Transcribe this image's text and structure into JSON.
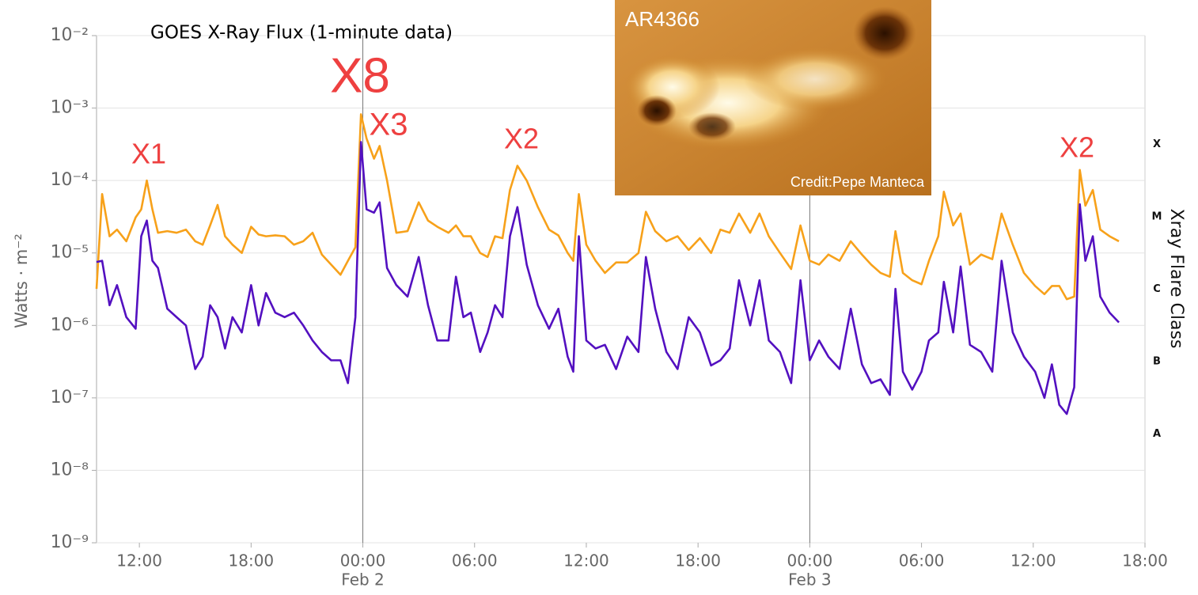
{
  "chart_data": {
    "type": "line",
    "title": "GOES X-Ray Flux (1-minute data)",
    "y_label": "Watts · m⁻²",
    "y2_label": "Xray Flare Class",
    "log_y": true,
    "grid": true,
    "xlim": [
      9.7,
      66
    ],
    "ylim": [
      1e-09,
      0.01
    ],
    "xticks": [
      {
        "value": 12,
        "label": "12:00"
      },
      {
        "value": 18,
        "label": "18:00"
      },
      {
        "value": 24,
        "label": "00:00"
      },
      {
        "value": 30,
        "label": "06:00"
      },
      {
        "value": 36,
        "label": "12:00"
      },
      {
        "value": 42,
        "label": "18:00"
      },
      {
        "value": 48,
        "label": "00:00"
      },
      {
        "value": 54,
        "label": "06:00"
      },
      {
        "value": 60,
        "label": "12:00"
      },
      {
        "value": 66,
        "label": "18:00"
      }
    ],
    "date_labels": [
      {
        "value": 24,
        "label": "Feb 2"
      },
      {
        "value": 48,
        "label": "Feb 3"
      }
    ],
    "yticks": [
      {
        "value": 1e-09,
        "label": "10⁻⁹"
      },
      {
        "value": 1e-08,
        "label": "10⁻⁸"
      },
      {
        "value": 1e-07,
        "label": "10⁻⁷"
      },
      {
        "value": 1e-06,
        "label": "10⁻⁶"
      },
      {
        "value": 1e-05,
        "label": "10⁻⁵"
      },
      {
        "value": 0.0001,
        "label": "10⁻⁴"
      },
      {
        "value": 0.001,
        "label": "10⁻³"
      },
      {
        "value": 0.01,
        "label": "10⁻²"
      }
    ],
    "flare_classes": [
      {
        "value": 1e-08,
        "label": "A"
      },
      {
        "value": 1e-07,
        "label": "B"
      },
      {
        "value": 1e-06,
        "label": "C"
      },
      {
        "value": 1e-05,
        "label": "M"
      },
      {
        "value": 0.0001,
        "label": "X"
      }
    ],
    "annotations": [
      "X1",
      "X8",
      "X3",
      "X2",
      "X2"
    ],
    "x": [
      9.7,
      10.0,
      10.4,
      10.8,
      11.3,
      11.8,
      12.1,
      12.4,
      12.7,
      13.0,
      13.5,
      14.0,
      14.5,
      15.0,
      15.4,
      15.8,
      16.2,
      16.6,
      17.0,
      17.5,
      18.0,
      18.4,
      18.8,
      19.3,
      19.8,
      20.3,
      20.8,
      21.3,
      21.8,
      22.3,
      22.8,
      23.2,
      23.6,
      23.9,
      24.2,
      24.6,
      24.9,
      25.3,
      25.8,
      26.4,
      27.0,
      27.5,
      28.0,
      28.6,
      29.0,
      29.4,
      29.8,
      30.3,
      30.7,
      31.1,
      31.5,
      31.9,
      32.3,
      32.8,
      33.4,
      34.0,
      34.5,
      35.0,
      35.3,
      35.6,
      36.0,
      36.5,
      37.0,
      37.6,
      38.2,
      38.8,
      39.2,
      39.7,
      40.3,
      40.9,
      41.5,
      42.1,
      42.7,
      43.2,
      43.7,
      44.2,
      44.8,
      45.3,
      45.8,
      46.4,
      47.0,
      47.5,
      48.0,
      48.5,
      49.0,
      49.6,
      50.2,
      50.8,
      51.3,
      51.8,
      52.3,
      52.6,
      53.0,
      53.5,
      54.0,
      54.4,
      54.9,
      55.2,
      55.7,
      56.1,
      56.6,
      57.2,
      57.8,
      58.3,
      58.9,
      59.5,
      60.1,
      60.6,
      61.0,
      61.4,
      61.8,
      62.2,
      62.5,
      62.8,
      63.2,
      63.6,
      64.1,
      64.6
    ],
    "series": [
      {
        "color": "#f7a11a",
        "values": [
          3.2e-06,
          6.5e-05,
          1.7e-05,
          2.1e-05,
          1.45e-05,
          3.1e-05,
          4e-05,
          0.0001,
          4e-05,
          1.9e-05,
          2e-05,
          1.9e-05,
          2.1e-05,
          1.45e-05,
          1.3e-05,
          2.4e-05,
          4.6e-05,
          1.7e-05,
          1.3e-05,
          1e-05,
          2.3e-05,
          1.8e-05,
          1.7e-05,
          1.75e-05,
          1.7e-05,
          1.3e-05,
          1.45e-05,
          1.9e-05,
          9.5e-06,
          6.9e-06,
          5e-06,
          7.8e-06,
          1.2e-05,
          0.00082,
          0.00038,
          0.0002,
          0.0003,
          0.0001,
          1.9e-05,
          2e-05,
          5e-05,
          2.8e-05,
          2.3e-05,
          1.9e-05,
          2.4e-05,
          1.7e-05,
          1.7e-05,
          1e-05,
          8.8e-06,
          1.7e-05,
          1.6e-05,
          7.4e-05,
          0.00016,
          0.0001,
          4.3e-05,
          2.1e-05,
          1.75e-05,
          1e-05,
          7.8e-06,
          6.5e-05,
          1.3e-05,
          7.8e-06,
          5.3e-06,
          7.4e-06,
          7.4e-06,
          1e-05,
          3.7e-05,
          2e-05,
          1.45e-05,
          1.7e-05,
          1.1e-05,
          1.6e-05,
          1e-05,
          2.1e-05,
          1.9e-05,
          3.5e-05,
          1.9e-05,
          3.5e-05,
          1.7e-05,
          1e-05,
          6e-06,
          2.4e-05,
          7.8e-06,
          6.9e-06,
          9.5e-06,
          7.8e-06,
          1.45e-05,
          9.5e-06,
          6.9e-06,
          5.3e-06,
          4.7e-06,
          2e-05,
          5.3e-06,
          4.2e-06,
          3.7e-06,
          7.8e-06,
          1.7e-05,
          7e-05,
          2.4e-05,
          3.5e-05,
          6.9e-06,
          9.5e-06,
          8.2e-06,
          3.5e-05,
          1.3e-05,
          5.3e-06,
          3.5e-06,
          2.7e-06,
          3.5e-06,
          3.5e-06,
          2.3e-06,
          2.5e-06,
          0.00014,
          4.5e-05,
          7.4e-05,
          2.1e-05,
          1.7e-05,
          1.45e-05
        ]
      },
      {
        "color": "#5310c0",
        "values": [
          7.5e-06,
          7.8e-06,
          1.9e-06,
          3.6e-06,
          1.3e-06,
          9e-07,
          1.7e-05,
          2.8e-05,
          7.8e-06,
          6.2e-06,
          1.7e-06,
          1.3e-06,
          1e-06,
          2.5e-07,
          3.7e-07,
          1.9e-06,
          1.3e-06,
          4.8e-07,
          1.3e-06,
          8e-07,
          3.6e-06,
          1e-06,
          2.8e-06,
          1.5e-06,
          1.3e-06,
          1.5e-06,
          1e-06,
          6.2e-07,
          4.3e-07,
          3.3e-07,
          3.3e-07,
          1.6e-07,
          1.3e-06,
          0.00034,
          4e-05,
          3.6e-05,
          5e-05,
          6.2e-06,
          3.6e-06,
          2.5e-06,
          8.8e-06,
          1.9e-06,
          6.2e-07,
          6.2e-07,
          4.7e-06,
          1.3e-06,
          1.5e-06,
          4.3e-07,
          8e-07,
          1.9e-06,
          1.3e-06,
          1.7e-05,
          4.3e-05,
          6.9e-06,
          1.9e-06,
          9e-07,
          1.7e-06,
          3.7e-07,
          2.3e-07,
          1.7e-05,
          6.2e-07,
          4.8e-07,
          5.4e-07,
          2.5e-07,
          7e-07,
          4.3e-07,
          8.8e-06,
          1.7e-06,
          4.3e-07,
          2.5e-07,
          1.3e-06,
          8e-07,
          2.8e-07,
          3.3e-07,
          4.8e-07,
          4.2e-06,
          1e-06,
          4.2e-06,
          6.2e-07,
          4.3e-07,
          1.6e-07,
          4.2e-06,
          3.3e-07,
          6.2e-07,
          3.7e-07,
          2.5e-07,
          1.7e-06,
          2.9e-07,
          1.6e-07,
          1.8e-07,
          1.1e-07,
          3.2e-06,
          2.3e-07,
          1.3e-07,
          2.3e-07,
          6.2e-07,
          8e-07,
          4e-06,
          8e-07,
          6.5e-06,
          5.4e-07,
          4.3e-07,
          2.3e-07,
          7.8e-06,
          8e-07,
          3.7e-07,
          2.3e-07,
          1e-07,
          2.9e-07,
          8e-08,
          6e-08,
          1.4e-07,
          4.7e-05,
          7.8e-06,
          1.7e-05,
          2.5e-06,
          1.5e-06,
          1.1e-06
        ]
      }
    ]
  },
  "inset": {
    "title": "AR4366",
    "credit": "Credit:Pepe Manteca"
  }
}
